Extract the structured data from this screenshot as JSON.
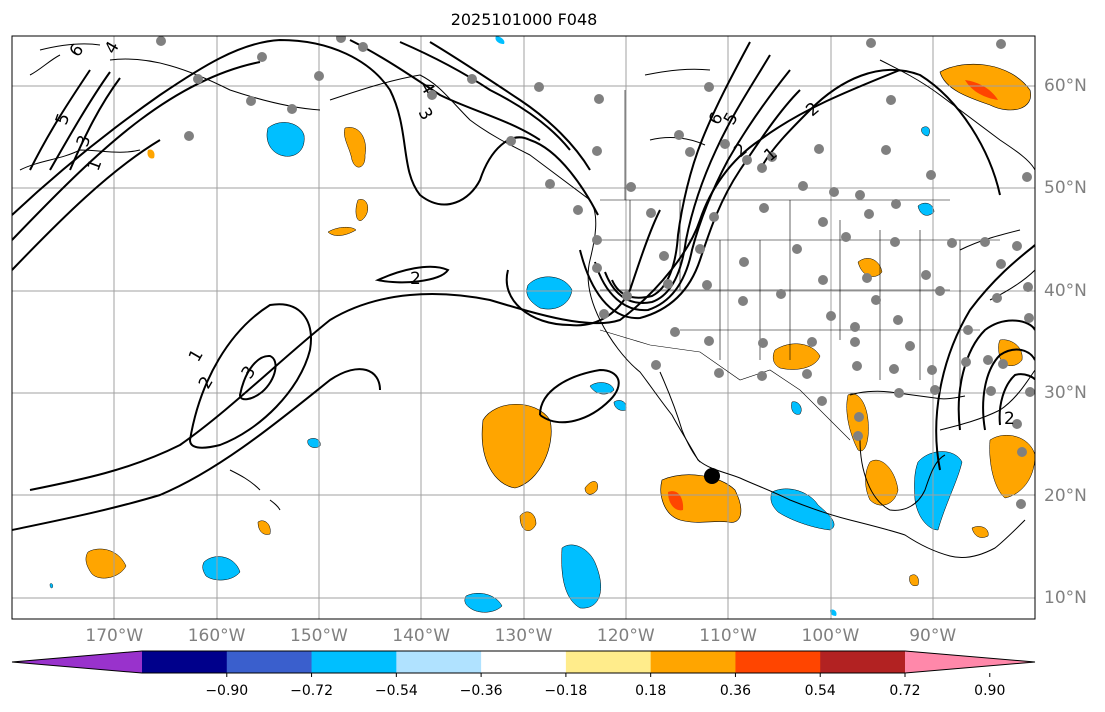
{
  "title": "2025101000 F048",
  "lon_labels": [
    {
      "text": "170°W",
      "lon": -170
    },
    {
      "text": "160°W",
      "lon": -160
    },
    {
      "text": "150°W",
      "lon": -150
    },
    {
      "text": "140°W",
      "lon": -140
    },
    {
      "text": "130°W",
      "lon": -130
    },
    {
      "text": "120°W",
      "lon": -120
    },
    {
      "text": "110°W",
      "lon": -110
    },
    {
      "text": "100°W",
      "lon": -100
    },
    {
      "text": "90°W",
      "lon": -90
    }
  ],
  "lat_labels": [
    {
      "text": "60°N",
      "lat": 60
    },
    {
      "text": "50°N",
      "lat": 50
    },
    {
      "text": "40°N",
      "lat": 40
    },
    {
      "text": "30°N",
      "lat": 30
    },
    {
      "text": "20°N",
      "lat": 20
    },
    {
      "text": "10°N",
      "lat": 10
    }
  ],
  "extent": {
    "lon_min": -180,
    "lon_max": -80,
    "lat_min": 8,
    "lat_max": 65
  },
  "colorbar": {
    "ticks": [
      "−0.90",
      "−0.72",
      "−0.54",
      "−0.36",
      "−0.18",
      "0.18",
      "0.36",
      "0.54",
      "0.72",
      "0.90"
    ],
    "colors": [
      "#9932cc",
      "#00008b",
      "#3a5fcd",
      "#00bfff",
      "#b0e2ff",
      "#ffffff",
      "#ffec8b",
      "#ffa500",
      "#ff4500",
      "#b22222",
      "#ff88aa"
    ]
  },
  "contour_labels": [
    {
      "text": "6"
    },
    {
      "text": "4"
    },
    {
      "text": "5"
    },
    {
      "text": "3"
    },
    {
      "text": "1"
    },
    {
      "text": "4"
    },
    {
      "text": "3"
    },
    {
      "text": "2"
    },
    {
      "text": "5"
    },
    {
      "text": "6"
    },
    {
      "text": "2"
    },
    {
      "text": "1"
    },
    {
      "text": "2"
    },
    {
      "text": "1"
    },
    {
      "text": "2"
    },
    {
      "text": "3"
    },
    {
      "text": "2"
    }
  ],
  "station_count_note": "",
  "legend_colors": {
    "positive": "#ffa500",
    "strong_positive": "#ff4500",
    "negative": "#00bfff",
    "station": "#808080",
    "contour": "#000000"
  }
}
